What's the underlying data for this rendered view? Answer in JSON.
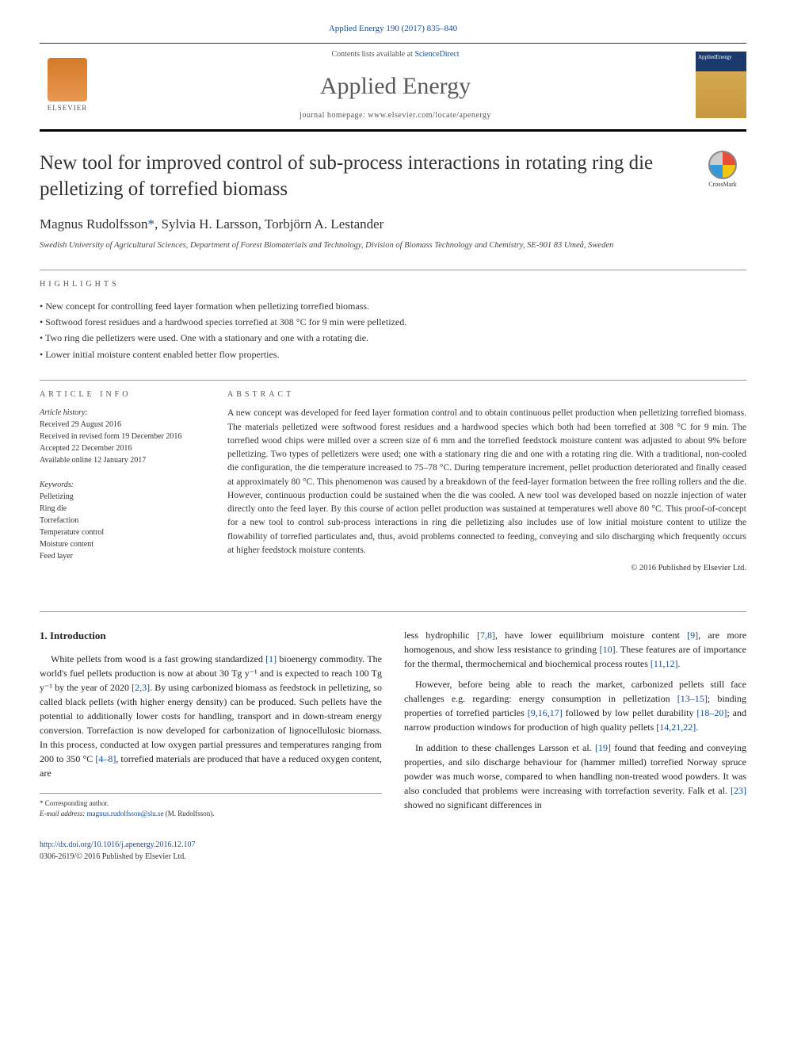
{
  "header": {
    "citation": "Applied Energy 190 (2017) 835–840",
    "contents_prefix": "Contents lists available at ",
    "contents_link": "ScienceDirect",
    "journal_name": "Applied Energy",
    "homepage_prefix": "journal homepage: ",
    "homepage_url": "www.elsevier.com/locate/apenergy",
    "elsevier_label": "ELSEVIER",
    "cover_label": "AppliedEnergy",
    "crossmark_label": "CrossMark"
  },
  "article": {
    "title": "New tool for improved control of sub-process interactions in rotating ring die pelletizing of torrefied biomass",
    "authors_html": "Magnus Rudolfsson",
    "author_corr": "*",
    "authors_rest": ", Sylvia H. Larsson, Torbjörn A. Lestander",
    "affiliation": "Swedish University of Agricultural Sciences, Department of Forest Biomaterials and Technology, Division of Biomass Technology and Chemistry, SE-901 83 Umeå, Sweden"
  },
  "highlights": {
    "label": "HIGHLIGHTS",
    "items": [
      "New concept for controlling feed layer formation when pelletizing torrefied biomass.",
      "Softwood forest residues and a hardwood species torrefied at 308 °C for 9 min were pelletized.",
      "Two ring die pelletizers were used. One with a stationary and one with a rotating die.",
      "Lower initial moisture content enabled better flow properties."
    ]
  },
  "article_info": {
    "label": "ARTICLE INFO",
    "history_label": "Article history:",
    "history": [
      "Received 29 August 2016",
      "Received in revised form 19 December 2016",
      "Accepted 22 December 2016",
      "Available online 12 January 2017"
    ],
    "keywords_label": "Keywords:",
    "keywords": [
      "Pelletizing",
      "Ring die",
      "Torrefaction",
      "Temperature control",
      "Moisture content",
      "Feed layer"
    ]
  },
  "abstract": {
    "label": "ABSTRACT",
    "text": "A new concept was developed for feed layer formation control and to obtain continuous pellet production when pelletizing torrefied biomass. The materials pelletized were softwood forest residues and a hardwood species which both had been torrefied at 308 °C for 9 min. The torrefied wood chips were milled over a screen size of 6 mm and the torrefied feedstock moisture content was adjusted to about 9% before pelletizing. Two types of pelletizers were used; one with a stationary ring die and one with a rotating ring die. With a traditional, non-cooled die configuration, the die temperature increased to 75–78 °C. During temperature increment, pellet production deteriorated and finally ceased at approximately 80 °C. This phenomenon was caused by a breakdown of the feed-layer formation between the free rolling rollers and the die. However, continuous production could be sustained when the die was cooled. A new tool was developed based on nozzle injection of water directly onto the feed layer. By this course of action pellet production was sustained at temperatures well above 80 °C. This proof-of-concept for a new tool to control sub-process interactions in ring die pelletizing also includes use of low initial moisture content to utilize the flowability of torrefied particulates and, thus, avoid problems connected to feeding, conveying and silo discharging which frequently occurs at higher feedstock moisture contents.",
    "copyright": "© 2016 Published by Elsevier Ltd."
  },
  "body": {
    "intro_heading": "1. Introduction",
    "col1_p1_a": "White pellets from wood is a fast growing standardized ",
    "col1_p1_ref1": "[1]",
    "col1_p1_b": " bioenergy commodity. The world's fuel pellets production is now at about 30 Tg y⁻¹ and is expected to reach 100 Tg y⁻¹ by the year of 2020 ",
    "col1_p1_ref2": "[2,3]",
    "col1_p1_c": ". By using carbonized biomass as feedstock in pelletizing, so called black pellets (with higher energy density) can be produced. Such pellets have the potential to additionally lower costs for handling, transport and in down-stream energy conversion. Torrefaction is now developed for carbonization of lignocellulosic biomass. In this process, conducted at low oxygen partial pressures and temperatures ranging from 200 to 350 °C ",
    "col1_p1_ref3": "[4–8]",
    "col1_p1_d": ", torrefied materials are produced that have a reduced oxygen content, are",
    "col2_p1_a": "less hydrophilic ",
    "col2_p1_ref1": "[7,8]",
    "col2_p1_b": ", have lower equilibrium moisture content ",
    "col2_p1_ref2": "[9]",
    "col2_p1_c": ", are more homogenous, and show less resistance to grinding ",
    "col2_p1_ref3": "[10]",
    "col2_p1_d": ". These features are of importance for the thermal, thermochemical and biochemical process routes ",
    "col2_p1_ref4": "[11,12]",
    "col2_p1_e": ".",
    "col2_p2_a": "However, before being able to reach the market, carbonized pellets still face challenges e.g. regarding: energy consumption in pelletization ",
    "col2_p2_ref1": "[13–15]",
    "col2_p2_b": "; binding properties of torrefied particles ",
    "col2_p2_ref2": "[9,16,17]",
    "col2_p2_c": " followed by low pellet durability ",
    "col2_p2_ref3": "[18–20]",
    "col2_p2_d": "; and narrow production windows for production of high quality pellets ",
    "col2_p2_ref4": "[14,21,22]",
    "col2_p2_e": ".",
    "col2_p3_a": "In addition to these challenges Larsson et al. ",
    "col2_p3_ref1": "[19]",
    "col2_p3_b": " found that feeding and conveying properties, and silo discharge behaviour for (hammer milled) torrefied Norway spruce powder was much worse, compared to when handling non-treated wood powders. It was also concluded that problems were increasing with torrefaction severity. Falk et al. ",
    "col2_p3_ref2": "[23]",
    "col2_p3_c": " showed no significant differences in"
  },
  "footer": {
    "corr_label": "* Corresponding author.",
    "email_label": "E-mail address: ",
    "email": "magnus.rudolfsson@slu.se",
    "email_who": " (M. Rudolfsson).",
    "doi": "http://dx.doi.org/10.1016/j.apenergy.2016.12.107",
    "issn_line": "0306-2619/© 2016 Published by Elsevier Ltd."
  },
  "colors": {
    "link": "#1a4d8f",
    "text": "#333333",
    "rule": "#999999",
    "elsevier_orange": "#d47a2a"
  }
}
